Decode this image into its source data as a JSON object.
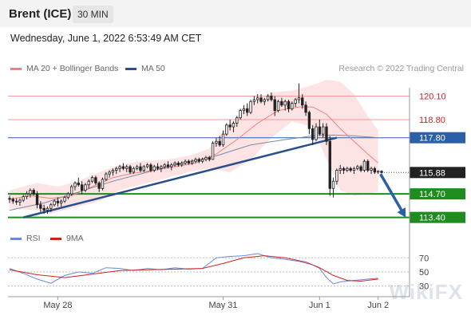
{
  "header": {
    "instrument": "Brent (ICE)",
    "timeframe": "30 MIN",
    "datetime": "Wednesday, June 1, 2022 6:53:49 AM CET"
  },
  "legend": {
    "ma20_label": "MA 20 + Bollinger Bands",
    "ma50_label": "MA 50",
    "rsi_label": "RSI",
    "ma9_label": "9MA",
    "credit": "Research © 2022 Trading Central"
  },
  "watermark": "WikiFX",
  "colors": {
    "ma20": "#f08080",
    "bollinger_fill": "#fde0e0",
    "ma50": "#2b4f8c",
    "support": "#1e8c1e",
    "resistance": "#f29a9a",
    "pivot": "#2b5fa8",
    "arrow": "#2b5fa8",
    "rsi": "#6a8ad6",
    "rsi_ma": "#cc2222",
    "candle": "#222222"
  },
  "chart_data": {
    "type": "candlestick",
    "x_ticks": [
      "May 28",
      "May 31",
      "Jun 1",
      "Jun 2"
    ],
    "price_axis": {
      "ylim": [
        112.9,
        121.0
      ]
    },
    "levels": [
      {
        "value": 120.1,
        "label": "120.10",
        "kind": "resistance"
      },
      {
        "value": 118.8,
        "label": "118.80",
        "kind": "resistance"
      },
      {
        "value": 117.8,
        "label": "117.80",
        "kind": "pivot"
      },
      {
        "value": 115.88,
        "label": "115.88",
        "kind": "last_price"
      },
      {
        "value": 114.7,
        "label": "114.70",
        "kind": "support"
      },
      {
        "value": 113.4,
        "label": "113.40",
        "kind": "support"
      }
    ],
    "ohlc": [
      [
        114.45,
        114.6,
        114.2,
        114.4
      ],
      [
        114.4,
        114.5,
        114.15,
        114.3
      ],
      [
        114.3,
        114.45,
        114.1,
        114.25
      ],
      [
        114.25,
        114.45,
        114.05,
        114.35
      ],
      [
        114.35,
        114.65,
        114.25,
        114.55
      ],
      [
        114.55,
        114.85,
        114.4,
        114.7
      ],
      [
        114.7,
        115.0,
        114.5,
        114.9
      ],
      [
        114.9,
        115.0,
        114.6,
        114.7
      ],
      [
        114.7,
        114.85,
        113.9,
        114.1
      ],
      [
        114.1,
        114.3,
        113.7,
        113.9
      ],
      [
        113.9,
        114.1,
        113.6,
        113.8
      ],
      [
        113.8,
        114.0,
        113.6,
        113.9
      ],
      [
        113.9,
        114.2,
        113.7,
        114.1
      ],
      [
        114.1,
        114.4,
        114.0,
        114.3
      ],
      [
        114.3,
        114.5,
        114.0,
        114.2
      ],
      [
        114.2,
        114.4,
        114.0,
        114.3
      ],
      [
        114.3,
        114.6,
        114.2,
        114.5
      ],
      [
        114.5,
        114.8,
        114.4,
        114.7
      ],
      [
        114.7,
        115.2,
        114.6,
        115.1
      ],
      [
        115.1,
        115.4,
        114.9,
        115.3
      ],
      [
        115.3,
        115.6,
        115.1,
        115.2
      ],
      [
        115.2,
        115.4,
        114.7,
        114.9
      ],
      [
        114.9,
        115.3,
        114.8,
        115.2
      ],
      [
        115.2,
        115.5,
        115.0,
        115.4
      ],
      [
        115.4,
        115.7,
        115.3,
        115.6
      ],
      [
        115.6,
        115.7,
        115.2,
        115.3
      ],
      [
        115.3,
        115.4,
        114.8,
        115.0
      ],
      [
        115.0,
        115.6,
        114.9,
        115.5
      ],
      [
        115.5,
        115.9,
        115.4,
        115.8
      ],
      [
        115.8,
        116.0,
        115.6,
        115.9
      ],
      [
        115.9,
        116.1,
        115.7,
        116.0
      ],
      [
        116.0,
        116.2,
        115.8,
        116.1
      ],
      [
        116.1,
        116.3,
        115.9,
        116.2
      ],
      [
        116.2,
        116.4,
        116.0,
        116.1
      ],
      [
        116.1,
        116.3,
        115.9,
        116.2
      ],
      [
        116.2,
        116.3,
        115.8,
        115.9
      ],
      [
        115.9,
        116.2,
        115.8,
        116.1
      ],
      [
        116.1,
        116.3,
        116.0,
        116.2
      ],
      [
        116.2,
        116.4,
        115.9,
        116.0
      ],
      [
        116.0,
        116.3,
        115.9,
        116.2
      ],
      [
        116.2,
        116.4,
        116.1,
        116.3
      ],
      [
        116.3,
        116.4,
        115.9,
        116.0
      ],
      [
        116.0,
        116.3,
        115.9,
        116.2
      ],
      [
        116.2,
        116.4,
        116.0,
        116.1
      ],
      [
        116.1,
        116.3,
        115.9,
        116.2
      ],
      [
        116.2,
        116.4,
        116.1,
        116.3
      ],
      [
        116.3,
        116.5,
        116.1,
        116.2
      ],
      [
        116.2,
        116.4,
        116.0,
        116.3
      ],
      [
        116.3,
        116.5,
        116.2,
        116.4
      ],
      [
        116.4,
        116.5,
        116.2,
        116.3
      ],
      [
        116.3,
        116.5,
        116.2,
        116.4
      ],
      [
        116.4,
        116.6,
        116.3,
        116.5
      ],
      [
        116.5,
        116.6,
        116.3,
        116.4
      ],
      [
        116.4,
        116.6,
        116.3,
        116.5
      ],
      [
        116.5,
        116.7,
        116.4,
        116.6
      ],
      [
        116.6,
        116.7,
        116.4,
        116.5
      ],
      [
        116.5,
        116.7,
        116.4,
        116.6
      ],
      [
        116.6,
        116.8,
        116.5,
        116.7
      ],
      [
        116.7,
        116.8,
        116.5,
        116.6
      ],
      [
        116.6,
        117.6,
        116.6,
        117.5
      ],
      [
        117.5,
        117.8,
        117.3,
        117.6
      ],
      [
        117.6,
        117.9,
        117.3,
        117.4
      ],
      [
        117.4,
        118.2,
        117.3,
        118.0
      ],
      [
        118.0,
        118.6,
        117.9,
        118.5
      ],
      [
        118.5,
        118.8,
        118.2,
        118.4
      ],
      [
        118.4,
        118.7,
        118.1,
        118.6
      ],
      [
        118.6,
        119.0,
        118.4,
        118.9
      ],
      [
        118.9,
        119.4,
        118.8,
        119.3
      ],
      [
        119.3,
        119.6,
        119.1,
        119.4
      ],
      [
        119.4,
        119.7,
        119.0,
        119.2
      ],
      [
        119.2,
        119.9,
        119.1,
        119.8
      ],
      [
        119.8,
        120.1,
        119.6,
        119.9
      ],
      [
        119.9,
        120.2,
        119.7,
        120.0
      ],
      [
        120.0,
        120.2,
        119.7,
        119.8
      ],
      [
        119.8,
        120.0,
        119.6,
        119.9
      ],
      [
        119.9,
        120.2,
        119.8,
        120.1
      ],
      [
        120.1,
        120.3,
        119.8,
        119.9
      ],
      [
        119.9,
        120.1,
        119.0,
        119.3
      ],
      [
        119.3,
        119.9,
        119.2,
        119.8
      ],
      [
        119.8,
        120.0,
        119.5,
        119.6
      ],
      [
        119.6,
        119.9,
        119.3,
        119.8
      ],
      [
        119.8,
        119.9,
        119.2,
        119.4
      ],
      [
        119.4,
        119.8,
        119.3,
        119.7
      ],
      [
        119.7,
        120.0,
        119.5,
        119.9
      ],
      [
        119.9,
        120.8,
        119.7,
        120.0
      ],
      [
        120.0,
        120.2,
        119.4,
        119.6
      ],
      [
        119.6,
        119.8,
        119.0,
        119.2
      ],
      [
        119.2,
        119.3,
        118.0,
        118.3
      ],
      [
        118.3,
        118.5,
        117.4,
        117.7
      ],
      [
        117.7,
        118.6,
        117.6,
        118.4
      ],
      [
        118.4,
        118.8,
        117.9,
        118.0
      ],
      [
        118.0,
        118.6,
        117.8,
        118.4
      ],
      [
        118.4,
        118.6,
        117.4,
        117.6
      ],
      [
        117.6,
        117.9,
        114.6,
        115.0
      ],
      [
        115.0,
        115.6,
        114.5,
        115.4
      ],
      [
        115.4,
        116.1,
        115.2,
        116.0
      ],
      [
        116.0,
        116.3,
        115.8,
        116.1
      ],
      [
        116.1,
        116.2,
        115.8,
        116.0
      ],
      [
        116.0,
        116.2,
        115.9,
        116.1
      ],
      [
        116.1,
        116.2,
        115.9,
        116.0
      ],
      [
        116.0,
        116.2,
        115.8,
        116.1
      ],
      [
        116.1,
        116.3,
        116.0,
        116.2
      ],
      [
        116.2,
        116.3,
        115.9,
        116.0
      ],
      [
        116.0,
        116.6,
        115.9,
        116.5
      ],
      [
        116.5,
        116.6,
        115.9,
        116.0
      ],
      [
        116.0,
        116.2,
        115.8,
        116.1
      ],
      [
        116.1,
        116.2,
        115.8,
        115.9
      ],
      [
        115.9,
        116.0,
        115.8,
        115.95
      ],
      [
        115.95,
        116.0,
        115.8,
        115.88
      ]
    ],
    "ma50": [
      [
        0,
        113.8
      ],
      [
        10,
        114.2
      ],
      [
        20,
        114.8
      ],
      [
        30,
        115.4
      ],
      [
        40,
        115.9
      ],
      [
        50,
        116.4
      ],
      [
        60,
        116.8
      ],
      [
        70,
        117.4
      ],
      [
        80,
        117.7
      ],
      [
        88,
        117.9
      ],
      [
        94,
        117.95
      ],
      [
        100,
        117.9
      ],
      [
        107,
        117.8
      ]
    ],
    "ma20": [
      [
        0,
        114.4
      ],
      [
        6,
        114.6
      ],
      [
        12,
        114.45
      ],
      [
        18,
        114.6
      ],
      [
        24,
        115.1
      ],
      [
        30,
        115.6
      ],
      [
        36,
        115.85
      ],
      [
        42,
        116.0
      ],
      [
        48,
        116.2
      ],
      [
        54,
        116.4
      ],
      [
        60,
        116.9
      ],
      [
        66,
        117.7
      ],
      [
        72,
        118.6
      ],
      [
        78,
        119.3
      ],
      [
        84,
        119.5
      ],
      [
        88,
        119.5
      ],
      [
        92,
        119.1
      ],
      [
        96,
        118.3
      ],
      [
        100,
        117.6
      ],
      [
        104,
        116.9
      ],
      [
        107,
        116.4
      ]
    ],
    "bollinger": {
      "upper": [
        [
          0,
          114.9
        ],
        [
          8,
          115.3
        ],
        [
          14,
          115.1
        ],
        [
          20,
          115.4
        ],
        [
          26,
          115.9
        ],
        [
          32,
          116.3
        ],
        [
          38,
          116.5
        ],
        [
          46,
          116.6
        ],
        [
          52,
          116.8
        ],
        [
          58,
          117.2
        ],
        [
          64,
          118.6
        ],
        [
          70,
          119.7
        ],
        [
          76,
          120.3
        ],
        [
          82,
          120.4
        ],
        [
          88,
          120.7
        ],
        [
          92,
          121.0
        ],
        [
          96,
          120.9
        ],
        [
          100,
          120.2
        ],
        [
          104,
          119.0
        ],
        [
          107,
          118.2
        ]
      ],
      "lower": [
        [
          0,
          113.9
        ],
        [
          8,
          113.8
        ],
        [
          12,
          113.6
        ],
        [
          18,
          113.9
        ],
        [
          26,
          114.3
        ],
        [
          32,
          114.9
        ],
        [
          38,
          115.2
        ],
        [
          46,
          115.6
        ],
        [
          52,
          115.9
        ],
        [
          58,
          116.1
        ],
        [
          64,
          115.9
        ],
        [
          70,
          116.6
        ],
        [
          76,
          117.8
        ],
        [
          82,
          118.7
        ],
        [
          88,
          118.4
        ],
        [
          92,
          116.6
        ],
        [
          96,
          114.9
        ],
        [
          100,
          114.6
        ],
        [
          104,
          114.7
        ],
        [
          107,
          114.8
        ]
      ]
    },
    "trendlines": [
      {
        "from": [
          4,
          113.4
        ],
        "to": [
          95,
          117.8
        ]
      }
    ],
    "forecast_arrow": {
      "from": [
        107,
        115.88
      ],
      "to": [
        115,
        113.4
      ]
    },
    "rsi_panel": {
      "levels": [
        70,
        50,
        30
      ],
      "ylim": [
        15,
        85
      ],
      "rsi": [
        [
          0,
          55
        ],
        [
          4,
          48
        ],
        [
          8,
          40
        ],
        [
          12,
          34
        ],
        [
          16,
          45
        ],
        [
          20,
          50
        ],
        [
          24,
          48
        ],
        [
          28,
          56
        ],
        [
          32,
          55
        ],
        [
          36,
          52
        ],
        [
          40,
          55
        ],
        [
          44,
          53
        ],
        [
          48,
          56
        ],
        [
          52,
          54
        ],
        [
          56,
          55
        ],
        [
          60,
          70
        ],
        [
          64,
          72
        ],
        [
          68,
          73
        ],
        [
          72,
          76
        ],
        [
          76,
          70
        ],
        [
          80,
          68
        ],
        [
          84,
          65
        ],
        [
          88,
          60
        ],
        [
          90,
          55
        ],
        [
          92,
          42
        ],
        [
          94,
          33
        ],
        [
          96,
          36
        ],
        [
          100,
          38
        ],
        [
          104,
          40
        ],
        [
          107,
          41
        ]
      ],
      "ma9": [
        [
          0,
          53
        ],
        [
          8,
          46
        ],
        [
          16,
          42
        ],
        [
          24,
          47
        ],
        [
          32,
          52
        ],
        [
          40,
          53
        ],
        [
          48,
          54
        ],
        [
          56,
          55
        ],
        [
          62,
          62
        ],
        [
          68,
          70
        ],
        [
          74,
          73
        ],
        [
          80,
          70
        ],
        [
          86,
          64
        ],
        [
          90,
          56
        ],
        [
          94,
          45
        ],
        [
          98,
          38
        ],
        [
          102,
          37
        ],
        [
          107,
          40
        ]
      ]
    }
  }
}
